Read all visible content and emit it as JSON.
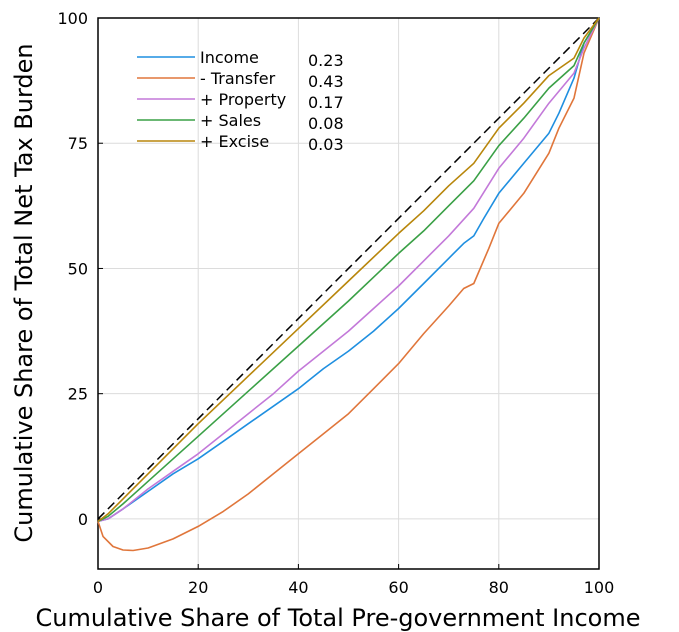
{
  "chart_data": {
    "type": "line",
    "title": "",
    "xlabel": "Cumulative Share of Total Pre-government Income",
    "ylabel": "Cumulative Share of Total Net Tax Burden",
    "xlim": [
      0,
      100
    ],
    "ylim": [
      -10,
      100
    ],
    "xticks": [
      "0",
      "20",
      "40",
      "60",
      "80",
      "100"
    ],
    "yticks": [
      "0",
      "25",
      "50",
      "75",
      "100"
    ],
    "grid": true,
    "legend_position": "top-left",
    "reference_line": {
      "style": "dashed",
      "color": "#000000",
      "x": [
        0,
        100
      ],
      "y": [
        0,
        100
      ]
    },
    "series": [
      {
        "name": "Income",
        "value_label": "0.23",
        "color": "#1f8fe0",
        "x": [
          0,
          2,
          5,
          10,
          15,
          20,
          25,
          30,
          35,
          40,
          45,
          50,
          55,
          60,
          65,
          70,
          73,
          75,
          77,
          80,
          85,
          90,
          92,
          95,
          97,
          100
        ],
        "y": [
          -0.5,
          0,
          2,
          5.5,
          9,
          12,
          15.5,
          19,
          22.5,
          26,
          30,
          33.5,
          37.5,
          42,
          47,
          52,
          55,
          56.5,
          60,
          65,
          71,
          77,
          81,
          88,
          95,
          100
        ]
      },
      {
        "name": "- Transfer",
        "value_label": "0.43",
        "color": "#e0763b",
        "x": [
          0,
          1,
          3,
          5,
          7,
          10,
          15,
          20,
          25,
          30,
          35,
          40,
          45,
          50,
          55,
          60,
          65,
          70,
          73,
          75,
          78,
          80,
          85,
          90,
          92,
          95,
          97,
          100
        ],
        "y": [
          -0.5,
          -3.5,
          -5.5,
          -6.2,
          -6.3,
          -5.8,
          -4,
          -1.5,
          1.5,
          5,
          9,
          13,
          17,
          21,
          26,
          31,
          37,
          42.5,
          46,
          47,
          54,
          59,
          65,
          73,
          78,
          84,
          93,
          100
        ]
      },
      {
        "name": "+ Property",
        "value_label": "0.17",
        "color": "#c379d9",
        "x": [
          0,
          2,
          5,
          10,
          15,
          20,
          25,
          30,
          35,
          40,
          45,
          50,
          55,
          60,
          65,
          70,
          75,
          80,
          85,
          90,
          95,
          97,
          100
        ],
        "y": [
          -0.5,
          0,
          2,
          6,
          9.5,
          13,
          17,
          21,
          25,
          29.5,
          33.5,
          37.5,
          42,
          46.5,
          51.5,
          56.5,
          62,
          70,
          76,
          83,
          89,
          94,
          100
        ]
      },
      {
        "name": "+ Sales",
        "value_label": "0.08",
        "color": "#3aa046",
        "x": [
          0,
          2,
          5,
          10,
          20,
          30,
          40,
          50,
          60,
          65,
          70,
          75,
          80,
          85,
          90,
          95,
          97,
          100
        ],
        "y": [
          -0.5,
          0.5,
          3,
          7.5,
          16.5,
          25.5,
          34.5,
          43.5,
          53,
          57.5,
          62.5,
          67.5,
          74.5,
          80,
          86,
          90.5,
          95,
          100
        ]
      },
      {
        "name": "+ Excise",
        "value_label": "0.03",
        "color": "#b8860b",
        "x": [
          0,
          2,
          5,
          10,
          20,
          30,
          40,
          50,
          60,
          65,
          70,
          75,
          80,
          85,
          90,
          95,
          97,
          100
        ],
        "y": [
          -0.5,
          1,
          4,
          9,
          19,
          28.5,
          38,
          47.5,
          57,
          61.5,
          66.5,
          71,
          78,
          83,
          88.5,
          92,
          96,
          100
        ]
      }
    ]
  }
}
